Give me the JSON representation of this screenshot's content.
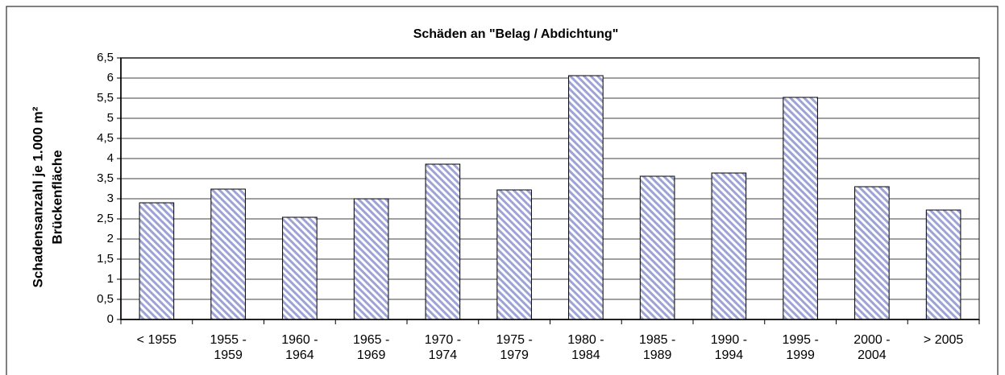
{
  "chart_data": {
    "type": "bar",
    "title": "Schäden an \"Belag / Abdichtung\"",
    "ylabel": [
      "Schadensanzahl je 1.000 m²",
      "Brückenfläche"
    ],
    "categories": [
      "< 1955",
      "1955 -\n1959",
      "1960 -\n1964",
      "1965 -\n1969",
      "1970 -\n1974",
      "1975 -\n1979",
      "1980 -\n1984",
      "1985 -\n1989",
      "1990 -\n1994",
      "1995 -\n1999",
      "2000 -\n2004",
      "> 2005"
    ],
    "values": [
      2.9,
      3.24,
      2.54,
      3.0,
      3.86,
      3.22,
      6.06,
      3.56,
      3.64,
      5.52,
      3.3,
      2.72
    ],
    "color": "#9ea3d6",
    "ylim": [
      0,
      6.5
    ],
    "yticks": [
      0,
      {
        "value": 0.5,
        "label": "0,5"
      },
      1,
      {
        "value": 1.5,
        "label": "1,5"
      },
      2,
      {
        "value": 2.5,
        "label": "2,5"
      },
      3,
      {
        "value": 3.5,
        "label": "3,5"
      },
      4,
      {
        "value": 4.5,
        "label": "4,5"
      },
      5,
      {
        "value": 5.5,
        "label": "5,5"
      },
      6,
      {
        "value": 6.5,
        "label": "6,5"
      }
    ],
    "grid": true
  }
}
